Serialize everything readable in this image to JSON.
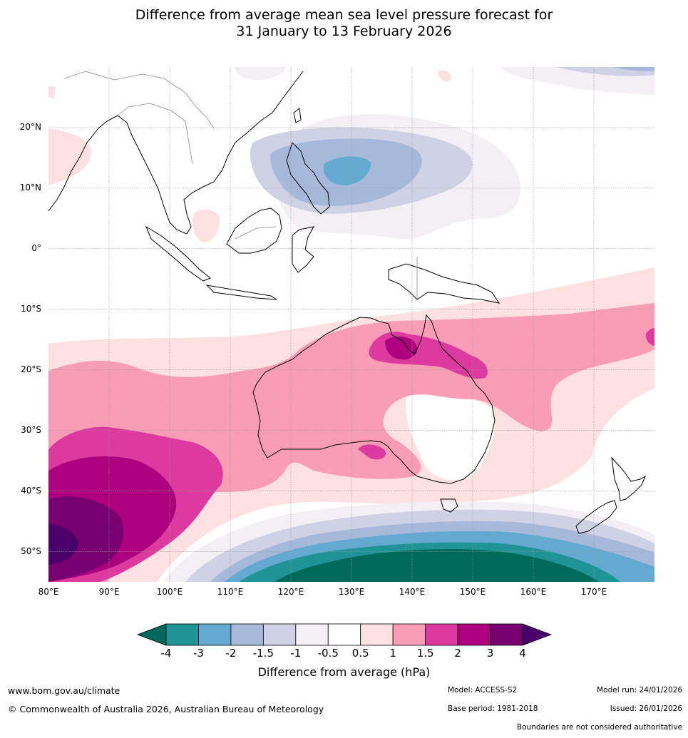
{
  "title": {
    "line1": "Difference from average mean sea level pressure forecast for",
    "line2": "31 January to 13 February 2026"
  },
  "map": {
    "lat_labels": [
      "20°N",
      "10°N",
      "0°",
      "10°S",
      "20°S",
      "30°S",
      "40°S",
      "50°S"
    ],
    "lon_labels": [
      "80°E",
      "90°E",
      "100°E",
      "110°E",
      "120°E",
      "130°E",
      "140°E",
      "150°E",
      "160°E",
      "170°E"
    ],
    "extent": {
      "lon_min": 80,
      "lon_max": 180,
      "lat_min": -55,
      "lat_max": 30
    }
  },
  "colorbar": {
    "ticks": [
      "-4",
      "-3",
      "-2",
      "-1.5",
      "-1",
      "-0.5",
      "0.5",
      "1",
      "1.5",
      "2",
      "3",
      "4"
    ],
    "colors": [
      "#006a5a",
      "#1f9396",
      "#63a9d0",
      "#a6b9da",
      "#cfd1e5",
      "#f3eff5",
      "#ffffff",
      "#fde0e0",
      "#f89db5",
      "#dc3a9e",
      "#ad007f",
      "#790070",
      "#4a006a"
    ],
    "label": "Difference from average (hPa)"
  },
  "footer": {
    "website": "www.bom.gov.au/climate",
    "copyright": "© Commonwealth of Australia 2026, Australian Bureau of Meteorology",
    "model": "Model: ACCESS-S2",
    "base_period": "Base period: 1981-2018",
    "model_run": "Model run: 24/01/2026",
    "issued": "Issued: 26/01/2026",
    "disclaimer": "Boundaries are not considered authoritative"
  }
}
